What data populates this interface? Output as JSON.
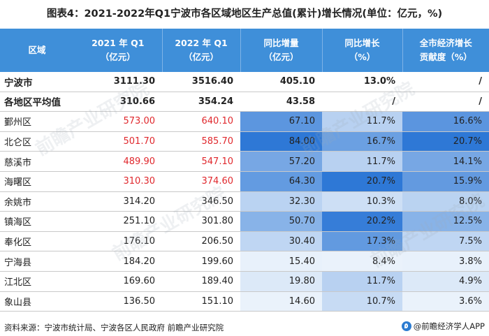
{
  "title": "图表4：2021-2022年Q1宁波市各区域地区生产总值(累计)增长情况(单位：亿元，%)",
  "headers": {
    "region": "区域",
    "q1_2021_line1": "2021 年 Q1",
    "q1_2021_line2": "（亿元）",
    "q1_2022_line1": "2022 年 Q1",
    "q1_2022_line2": "（亿元）",
    "increment_line1": "同比增量",
    "increment_line2": "（亿元）",
    "growth_line1": "同比增长",
    "growth_line2": "（%）",
    "contrib_line1": "全市经济增长",
    "contrib_line2": "贡献度（%）"
  },
  "summary_rows": [
    {
      "name": "宁波市",
      "q1_2021": "3111.30",
      "q1_2022": "3516.40",
      "increment": "405.10",
      "growth": "13.0%",
      "contrib": "/"
    },
    {
      "name": "各地区平均值",
      "q1_2021": "310.66",
      "q1_2022": "354.24",
      "increment": "43.58",
      "growth": "/",
      "contrib": "/"
    }
  ],
  "rows": [
    {
      "name": "鄞州区",
      "q1_2021": "573.00",
      "q1_2022": "640.10",
      "increment": "67.10",
      "growth": "11.7%",
      "contrib": "16.6%",
      "highlight": true
    },
    {
      "name": "北仑区",
      "q1_2021": "501.70",
      "q1_2022": "585.70",
      "increment": "84.00",
      "growth": "16.7%",
      "contrib": "20.7%",
      "highlight": true
    },
    {
      "name": "慈溪市",
      "q1_2021": "489.90",
      "q1_2022": "547.10",
      "increment": "57.20",
      "growth": "11.7%",
      "contrib": "14.1%",
      "highlight": true
    },
    {
      "name": "海曙区",
      "q1_2021": "310.30",
      "q1_2022": "374.60",
      "increment": "64.30",
      "growth": "20.7%",
      "contrib": "15.9%",
      "highlight": true
    },
    {
      "name": "余姚市",
      "q1_2021": "314.20",
      "q1_2022": "346.50",
      "increment": "32.30",
      "growth": "10.3%",
      "contrib": "8.0%",
      "highlight": false
    },
    {
      "name": "镇海区",
      "q1_2021": "251.10",
      "q1_2022": "301.80",
      "increment": "50.70",
      "growth": "20.2%",
      "contrib": "12.5%",
      "highlight": false
    },
    {
      "name": "奉化区",
      "q1_2021": "176.10",
      "q1_2022": "206.50",
      "increment": "30.40",
      "growth": "17.3%",
      "contrib": "7.5%",
      "highlight": false
    },
    {
      "name": "宁海县",
      "q1_2021": "184.20",
      "q1_2022": "199.60",
      "increment": "15.40",
      "growth": "8.4%",
      "contrib": "3.8%",
      "highlight": false
    },
    {
      "name": "江北区",
      "q1_2021": "169.60",
      "q1_2022": "189.40",
      "increment": "19.80",
      "growth": "11.7%",
      "contrib": "4.9%",
      "highlight": false
    },
    {
      "name": "象山县",
      "q1_2021": "136.50",
      "q1_2022": "151.10",
      "increment": "14.60",
      "growth": "10.7%",
      "contrib": "3.6%",
      "highlight": false
    }
  ],
  "scale": {
    "increment": {
      "min": 14.6,
      "max": 84.0
    },
    "growth": {
      "min": 8.4,
      "max": 20.7
    },
    "contrib": {
      "min": 3.6,
      "max": 20.7
    }
  },
  "colors": {
    "header_bg": "#3f8fd9",
    "highlight_text": "#e0282d",
    "heat_low": "#eaf2fb",
    "heat_high": "#2e78d6"
  },
  "footer": {
    "source": "资料来源：宁波市统计局、宁波各区人民政府 前瞻产业研究院",
    "brand": "@前瞻经济学人APP"
  },
  "watermark": "前瞻产业研究院"
}
